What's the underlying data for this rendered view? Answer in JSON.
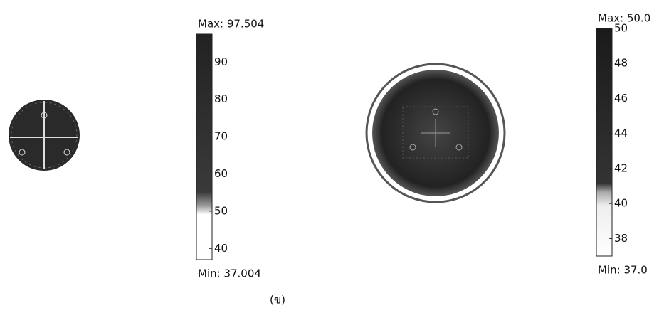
{
  "panels": [
    {
      "max_label": "Max: 97.504",
      "min_label": "Min: 37.004",
      "clim": [
        37.004,
        97.504
      ],
      "ticks": [
        40,
        50,
        60,
        70,
        80,
        90
      ]
    },
    {
      "max_label": "Max: 50.0",
      "min_label": "Min: 37.0",
      "clim": [
        37,
        50
      ],
      "ticks": [
        38,
        40,
        42,
        44,
        46,
        48,
        50
      ]
    }
  ],
  "caption": "(ข)"
}
